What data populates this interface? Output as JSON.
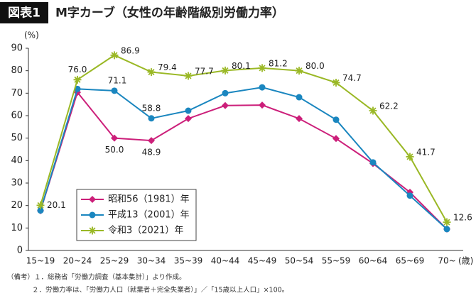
{
  "chart_data": {
    "type": "line",
    "figure_label": "図表1",
    "title": "M字カーブ（女性の年齢階級別労働力率）",
    "y_label": "(%)",
    "x_label": "(歳)",
    "categories": [
      "15~19",
      "20~24",
      "25~29",
      "30~34",
      "35~39",
      "40~44",
      "45~49",
      "50~54",
      "55~59",
      "60~64",
      "65~69",
      "70~"
    ],
    "ylim": [
      0,
      90
    ],
    "yticks": [
      0,
      10,
      20,
      30,
      40,
      50,
      60,
      70,
      80,
      90
    ],
    "legend": "lower left",
    "series": [
      {
        "name": "昭和56（1981）年",
        "color": "#cc1f7a",
        "marker": "diamond",
        "values": [
          17.7,
          70.4,
          50.0,
          48.9,
          58.7,
          64.5,
          64.7,
          58.7,
          49.8,
          38.7,
          25.9,
          9.5
        ],
        "value_labels": [
          null,
          null,
          "50.0",
          "48.9",
          null,
          null,
          null,
          null,
          null,
          null,
          null,
          null
        ]
      },
      {
        "name": "平成13（2001）年",
        "color": "#1a86bf",
        "marker": "circle",
        "values": [
          17.8,
          71.9,
          71.1,
          58.8,
          62.2,
          70.0,
          72.6,
          68.2,
          58.2,
          39.2,
          24.4,
          9.5
        ],
        "value_labels": [
          null,
          null,
          "71.1",
          "58.8",
          null,
          null,
          null,
          null,
          null,
          null,
          null,
          null
        ]
      },
      {
        "name": "令和3（2021）年",
        "color": "#9ab825",
        "marker": "star",
        "values": [
          20.1,
          76.0,
          86.9,
          79.4,
          77.7,
          80.1,
          81.2,
          80.0,
          74.7,
          62.2,
          41.7,
          12.6
        ],
        "value_labels": [
          "20.1",
          "76.0",
          "86.9",
          "79.4",
          "77.7",
          "80.1",
          "81.2",
          "80.0",
          "74.7",
          "62.2",
          "41.7",
          "12.6"
        ]
      }
    ],
    "notes": [
      "（備考）１．総務省「労働力調査（基本集計）」より作成。",
      "２．労働力率は、「労働力人口（就業者＋完全失業者）」／「15歳以上人口」×100。"
    ]
  }
}
